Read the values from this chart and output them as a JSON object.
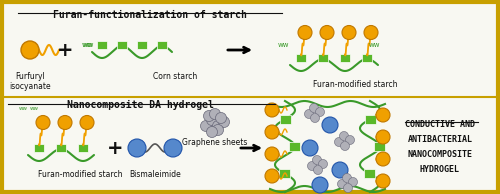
{
  "bg_color": "#f8f8f2",
  "outer_border_color": "#c8a000",
  "inner_border_color": "#c8a000",
  "top_panel_title": "Furan-functionalization of starch",
  "bottom_panel_title": "Nanocomposite DA hydrogel",
  "top_label1": "Furfuryl\nisocyanate",
  "top_label2": "Corn starch",
  "top_label3": "Furan-modified starch",
  "bottom_label1": "Furan-modified starch",
  "bottom_label2": "Bismaleimide",
  "bottom_label3": "Graphene sheets",
  "bottom_label4": "CONDUCTIVE AND\nANTIBACTERIAL\nNANOCOMPOSITE\nHYDROGEL",
  "green_color": "#3a9a2a",
  "green_square_color": "#5ab82a",
  "orange_color": "#f0a000",
  "orange_dark": "#c07800",
  "blue_color": "#5588cc",
  "gray_color": "#999999",
  "gray_dark": "#555555",
  "text_color": "#111111",
  "title_fontsize": 7.0,
  "label_fontsize": 5.5
}
